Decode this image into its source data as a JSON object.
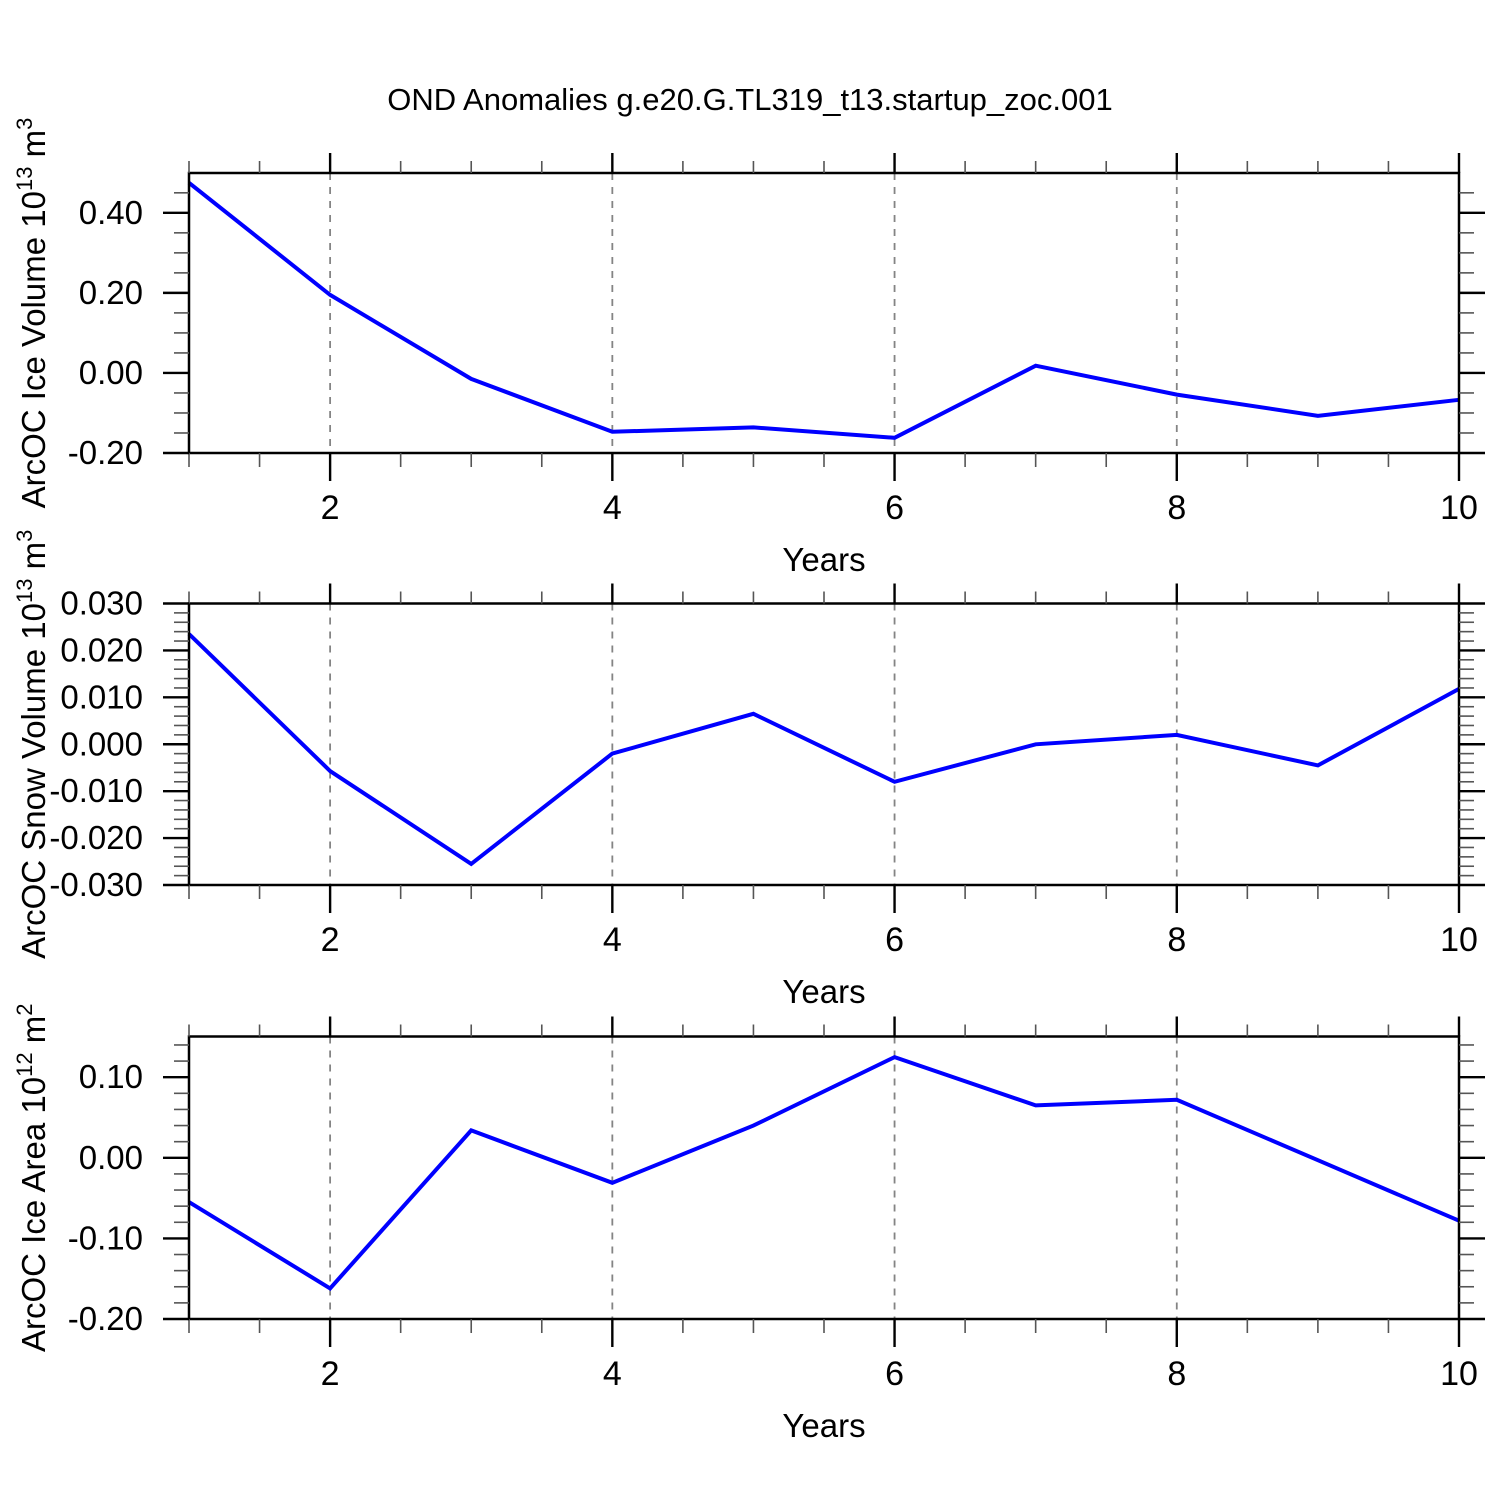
{
  "title": "OND Anomalies g.e20.G.TL319_t13.startup_zoc.001",
  "colors": {
    "line": "#0000ff",
    "grid": "#848484",
    "frame": "#000000",
    "major_tick": "#000000",
    "minor_tick": "#555555",
    "text": "#000000",
    "background": "#ffffff"
  },
  "chart_data": [
    {
      "type": "line",
      "panel": "ice-volume",
      "ylabel_text": "ArcOC Ice Volume 10^13 m^3",
      "ylabel_parts": [
        {
          "t": "ArcOC Ice Volume 10"
        },
        {
          "t": "13",
          "sup": true
        },
        {
          "t": " m"
        },
        {
          "t": "3",
          "sup": true
        }
      ],
      "xlabel": "Years",
      "x": [
        1,
        2,
        3,
        4,
        5,
        6,
        7,
        8,
        9,
        10
      ],
      "values": [
        0.475,
        0.195,
        -0.015,
        -0.147,
        -0.136,
        -0.162,
        0.018,
        -0.054,
        -0.107,
        -0.067
      ],
      "xlim": [
        1,
        10
      ],
      "ylim": [
        -0.2,
        0.4995
      ],
      "xtick_values": [
        2,
        4,
        6,
        8,
        10
      ],
      "xtick_labels": [
        "2",
        "4",
        "6",
        "8",
        "10"
      ],
      "xminor": 0.5,
      "ytick_values": [
        0.4,
        0.2,
        0.0,
        -0.2
      ],
      "ytick_labels": [
        "0.40",
        "0.20",
        "0.00",
        "-0.20"
      ],
      "yminor": 0.05,
      "grid_x": [
        2,
        4,
        6,
        8
      ],
      "legend": "none"
    },
    {
      "type": "line",
      "panel": "snow-volume",
      "ylabel_text": "ArcOC Snow Volume 10^13 m^3",
      "ylabel_parts": [
        {
          "t": "ArcOC Snow Volume 10"
        },
        {
          "t": "13",
          "sup": true
        },
        {
          "t": " m"
        },
        {
          "t": "3",
          "sup": true
        }
      ],
      "xlabel": "Years",
      "x": [
        1,
        2,
        3,
        4,
        5,
        6,
        7,
        8,
        9,
        10
      ],
      "values": [
        0.0235,
        -0.0057,
        -0.0255,
        -0.002,
        0.0065,
        -0.008,
        0.0,
        0.002,
        -0.0045,
        0.0118
      ],
      "xlim": [
        1,
        10
      ],
      "ylim": [
        -0.03,
        0.03
      ],
      "xtick_values": [
        2,
        4,
        6,
        8,
        10
      ],
      "xtick_labels": [
        "2",
        "4",
        "6",
        "8",
        "10"
      ],
      "xminor": 0.5,
      "ytick_values": [
        0.03,
        0.02,
        0.01,
        0.0,
        -0.01,
        -0.02,
        -0.03
      ],
      "ytick_labels": [
        "0.030",
        "0.020",
        "0.010",
        "0.000",
        "-0.010",
        "-0.020",
        "-0.030"
      ],
      "yminor": 0.002,
      "grid_x": [
        2,
        4,
        6,
        8
      ],
      "legend": "none"
    },
    {
      "type": "line",
      "panel": "ice-area",
      "ylabel_text": "ArcOC Ice Area 10^12 m^2",
      "ylabel_parts": [
        {
          "t": "ArcOC Ice Area 10"
        },
        {
          "t": "12",
          "sup": true
        },
        {
          "t": " m"
        },
        {
          "t": "2",
          "sup": true
        }
      ],
      "xlabel": "Years",
      "x": [
        1,
        2,
        3,
        4,
        5,
        6,
        7,
        8,
        9,
        10
      ],
      "values": [
        -0.055,
        -0.162,
        0.034,
        -0.031,
        0.04,
        0.125,
        0.065,
        0.072,
        -0.003,
        -0.078
      ],
      "xlim": [
        1,
        10
      ],
      "ylim": [
        -0.2,
        0.1505
      ],
      "xtick_values": [
        2,
        4,
        6,
        8,
        10
      ],
      "xtick_labels": [
        "2",
        "4",
        "6",
        "8",
        "10"
      ],
      "xminor": 0.5,
      "ytick_values": [
        0.1,
        0.0,
        -0.1,
        -0.2
      ],
      "ytick_labels": [
        "0.10",
        "0.00",
        "-0.10",
        "-0.20"
      ],
      "yminor": 0.02,
      "grid_x": [
        2,
        4,
        6,
        8
      ],
      "legend": "none"
    }
  ]
}
